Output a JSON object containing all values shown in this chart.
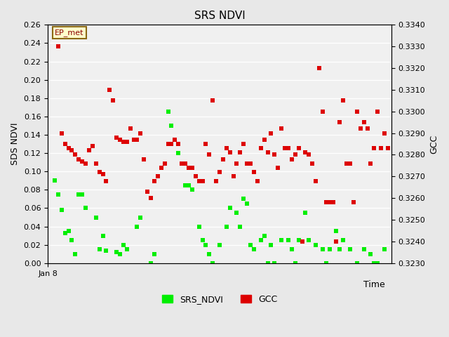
{
  "title": "SRS NDVI",
  "xlabel": "Time",
  "ylabel_left": "SDS NDVI",
  "ylabel_right": "GCC",
  "annotation_text": "EP_met",
  "xlim": [
    0,
    100
  ],
  "ylim_left": [
    0.0,
    0.26
  ],
  "ylim_right": [
    0.323,
    0.334
  ],
  "yticks_left": [
    0.0,
    0.02,
    0.04,
    0.06,
    0.08,
    0.1,
    0.12,
    0.14,
    0.16,
    0.18,
    0.2,
    0.22,
    0.24,
    0.26
  ],
  "yticks_right": [
    0.323,
    0.324,
    0.325,
    0.326,
    0.327,
    0.328,
    0.329,
    0.33,
    0.331,
    0.332,
    0.333,
    0.334
  ],
  "xtick_label": "Jan 8",
  "background_color": "#e8e8e8",
  "plot_bg_color": "#f0f0f0",
  "grid_color": "#ffffff",
  "marker_size": 5,
  "ndvi_color": "#00ee00",
  "gcc_color": "#dd0000",
  "ndvi_x": [
    2,
    3,
    4,
    5,
    6,
    7,
    8,
    9,
    10,
    11,
    14,
    15,
    16,
    17,
    20,
    21,
    22,
    23,
    26,
    27,
    30,
    31,
    35,
    36,
    38,
    40,
    41,
    42,
    44,
    45,
    46,
    47,
    48,
    50,
    52,
    53,
    55,
    56,
    57,
    58,
    59,
    60,
    62,
    63,
    64,
    65,
    66,
    68,
    70,
    71,
    72,
    73,
    75,
    76,
    78,
    80,
    81,
    82,
    84,
    85,
    86,
    88,
    90,
    92,
    94,
    95,
    96,
    98
  ],
  "ndvi_y": [
    0.09,
    0.075,
    0.058,
    0.033,
    0.035,
    0.025,
    0.01,
    0.075,
    0.075,
    0.06,
    0.05,
    0.015,
    0.03,
    0.014,
    0.012,
    0.01,
    0.02,
    0.015,
    0.04,
    0.05,
    0.0,
    0.01,
    0.165,
    0.15,
    0.12,
    0.085,
    0.085,
    0.08,
    0.04,
    0.025,
    0.02,
    0.01,
    0.0,
    0.02,
    0.04,
    0.06,
    0.055,
    0.04,
    0.07,
    0.065,
    0.02,
    0.015,
    0.025,
    0.03,
    0.0,
    0.02,
    0.0,
    0.025,
    0.025,
    0.015,
    0.0,
    0.025,
    0.055,
    0.025,
    0.02,
    0.015,
    0.0,
    0.015,
    0.035,
    0.015,
    0.025,
    0.015,
    0.0,
    0.015,
    0.01,
    0.0,
    0.0,
    0.015
  ],
  "gcc_x": [
    3,
    4,
    5,
    6,
    7,
    8,
    9,
    10,
    11,
    12,
    13,
    14,
    15,
    16,
    17,
    18,
    19,
    20,
    21,
    22,
    23,
    24,
    25,
    26,
    27,
    28,
    29,
    30,
    31,
    32,
    33,
    34,
    35,
    36,
    37,
    38,
    39,
    40,
    41,
    42,
    43,
    44,
    45,
    46,
    47,
    48,
    49,
    50,
    51,
    52,
    53,
    54,
    55,
    56,
    57,
    58,
    59,
    60,
    61,
    62,
    63,
    64,
    65,
    66,
    67,
    68,
    69,
    70,
    71,
    72,
    73,
    74,
    75,
    76,
    77,
    78,
    79,
    80,
    81,
    82,
    83,
    84,
    85,
    86,
    87,
    88,
    89,
    90,
    91,
    92,
    93,
    94,
    95,
    96,
    97,
    98,
    99
  ],
  "gcc_y": [
    0.333,
    0.329,
    0.3285,
    0.3283,
    0.3282,
    0.328,
    0.3278,
    0.3277,
    0.3276,
    0.3282,
    0.3284,
    0.3276,
    0.3272,
    0.3271,
    0.3268,
    0.331,
    0.3305,
    0.3288,
    0.3287,
    0.3286,
    0.3286,
    0.3292,
    0.3287,
    0.3287,
    0.329,
    0.3278,
    0.3263,
    0.326,
    0.3268,
    0.327,
    0.3274,
    0.3276,
    0.3285,
    0.3285,
    0.3287,
    0.3285,
    0.3276,
    0.3276,
    0.3274,
    0.3274,
    0.327,
    0.3268,
    0.3268,
    0.3285,
    0.328,
    0.3305,
    0.3268,
    0.3272,
    0.3278,
    0.3283,
    0.3281,
    0.327,
    0.3276,
    0.3281,
    0.3285,
    0.3276,
    0.3276,
    0.3272,
    0.3268,
    0.3283,
    0.3287,
    0.3281,
    0.329,
    0.328,
    0.3274,
    0.3292,
    0.3283,
    0.3283,
    0.3278,
    0.328,
    0.3283,
    0.324,
    0.3281,
    0.328,
    0.3276,
    0.3268,
    0.332,
    0.33,
    0.3258,
    0.3258,
    0.3258,
    0.324,
    0.3295,
    0.3305,
    0.3276,
    0.3276,
    0.3258,
    0.33,
    0.3292,
    0.3295,
    0.3292,
    0.3276,
    0.3283,
    0.33,
    0.3283,
    0.329,
    0.3283
  ]
}
